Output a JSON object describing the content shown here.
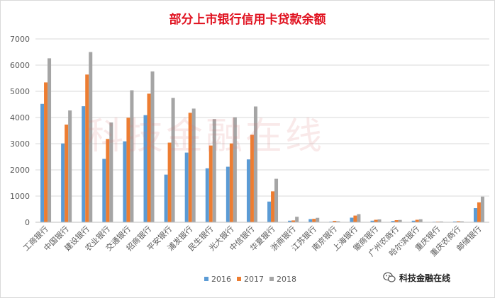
{
  "chart_data": {
    "type": "bar",
    "title": "部分上市银行信用卡贷款余额",
    "xlabel": "",
    "ylabel": "",
    "ylim": [
      0,
      7000
    ],
    "yticks": [
      0,
      1000,
      2000,
      3000,
      4000,
      5000,
      6000,
      7000
    ],
    "grid": true,
    "legend": "bottom",
    "categories": [
      "工商银行",
      "中国银行",
      "建设银行",
      "农业银行",
      "交通银行",
      "招商银行",
      "平安银行",
      "浦发银行",
      "民生银行",
      "光大银行",
      "中信银行",
      "华夏银行",
      "浙商银行",
      "江苏银行",
      "南京银行",
      "上海银行",
      "徽商银行",
      "广州农商行",
      "哈尔滨银行",
      "重庆银行",
      "重庆农商行",
      "邮储银行"
    ],
    "series": [
      {
        "name": "2016",
        "color": "#5b9bd5",
        "values": [
          4520,
          3010,
          4430,
          2420,
          3090,
          4090,
          1820,
          2660,
          2060,
          2120,
          2400,
          790,
          60,
          120,
          25,
          175,
          60,
          50,
          60,
          20,
          30,
          540
        ]
      },
      {
        "name": "2017",
        "color": "#ed7d31",
        "values": [
          5340,
          3730,
          5640,
          3180,
          3990,
          4910,
          3040,
          4180,
          2930,
          3010,
          3340,
          1180,
          70,
          130,
          55,
          255,
          95,
          80,
          95,
          25,
          40,
          760
        ]
      },
      {
        "name": "2018",
        "color": "#a5a5a5",
        "values": [
          6260,
          4270,
          6500,
          3810,
          5040,
          5760,
          4750,
          4340,
          3940,
          4010,
          4420,
          1660,
          210,
          170,
          40,
          310,
          110,
          90,
          115,
          30,
          35,
          980
        ]
      }
    ]
  },
  "watermark": "科技金融在线",
  "badge": {
    "icon": "wechat-icon",
    "text": "科技金融在线"
  }
}
